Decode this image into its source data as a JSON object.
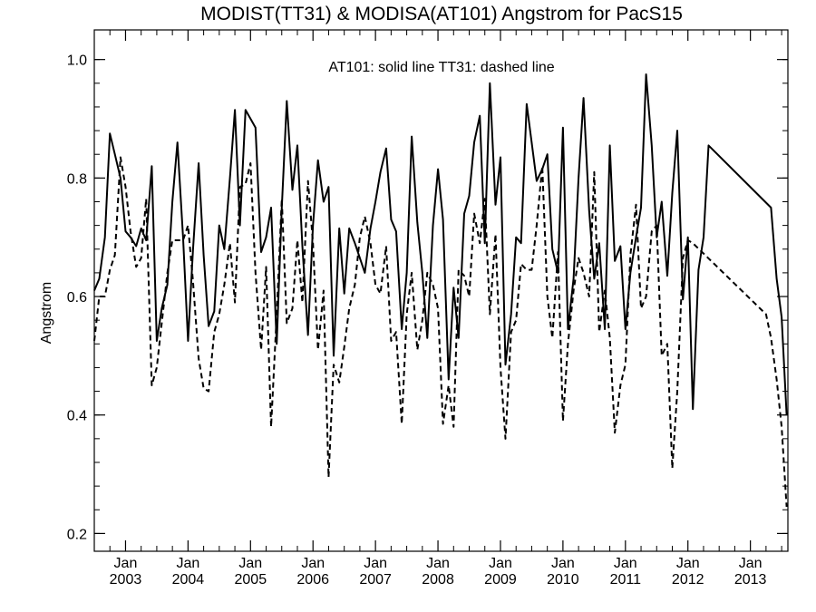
{
  "chart_data": {
    "type": "line",
    "title": "MODIST(TT31) & MODISA(AT101)  Angstrom for PacS15",
    "xlabel": "",
    "ylabel": "Angstrom",
    "annotation": "AT101: solid line    TT31: dashed line",
    "xlim": [
      2002.5,
      2013.6
    ],
    "ylim": [
      0.17,
      1.05
    ],
    "yticks": [
      0.2,
      0.4,
      0.6,
      0.8,
      1.0
    ],
    "ytick_labels": [
      "0.2",
      "0.4",
      "0.6",
      "0.8",
      "1.0"
    ],
    "xticks": [
      {
        "pos": 2003.0,
        "month": "Jan",
        "year": "2003"
      },
      {
        "pos": 2004.0,
        "month": "Jan",
        "year": "2004"
      },
      {
        "pos": 2005.0,
        "month": "Jan",
        "year": "2005"
      },
      {
        "pos": 2006.0,
        "month": "Jan",
        "year": "2006"
      },
      {
        "pos": 2007.0,
        "month": "Jan",
        "year": "2007"
      },
      {
        "pos": 2008.0,
        "month": "Jan",
        "year": "2008"
      },
      {
        "pos": 2009.0,
        "month": "Jan",
        "year": "2009"
      },
      {
        "pos": 2010.0,
        "month": "Jan",
        "year": "2010"
      },
      {
        "pos": 2011.0,
        "month": "Jan",
        "year": "2011"
      },
      {
        "pos": 2012.0,
        "month": "Jan",
        "year": "2012"
      },
      {
        "pos": 2013.0,
        "month": "Jan",
        "year": "2013"
      }
    ],
    "grid": false,
    "series": [
      {
        "name": "AT101",
        "style": "solid",
        "color": "#000000",
        "points": [
          [
            2002.5,
            0.61
          ],
          [
            2002.58,
            0.63
          ],
          [
            2002.67,
            0.7
          ],
          [
            2002.75,
            0.875
          ],
          [
            2002.83,
            0.84
          ],
          [
            2002.92,
            0.8
          ],
          [
            2003.0,
            0.71
          ],
          [
            2003.08,
            0.7
          ],
          [
            2003.17,
            0.685
          ],
          [
            2003.25,
            0.715
          ],
          [
            2003.33,
            0.695
          ],
          [
            2003.42,
            0.82
          ],
          [
            2003.5,
            0.525
          ],
          [
            2003.58,
            0.58
          ],
          [
            2003.67,
            0.62
          ],
          [
            2003.75,
            0.76
          ],
          [
            2003.83,
            0.86
          ],
          [
            2003.92,
            0.7
          ],
          [
            2004.0,
            0.525
          ],
          [
            2004.08,
            0.68
          ],
          [
            2004.17,
            0.825
          ],
          [
            2004.25,
            0.67
          ],
          [
            2004.33,
            0.55
          ],
          [
            2004.42,
            0.575
          ],
          [
            2004.5,
            0.72
          ],
          [
            2004.58,
            0.68
          ],
          [
            2004.67,
            0.8
          ],
          [
            2004.75,
            0.915
          ],
          [
            2004.83,
            0.72
          ],
          [
            2004.92,
            0.915
          ],
          [
            2005.08,
            0.885
          ],
          [
            2005.17,
            0.675
          ],
          [
            2005.25,
            0.7
          ],
          [
            2005.33,
            0.75
          ],
          [
            2005.42,
            0.52
          ],
          [
            2005.5,
            0.75
          ],
          [
            2005.58,
            0.93
          ],
          [
            2005.67,
            0.78
          ],
          [
            2005.75,
            0.855
          ],
          [
            2005.83,
            0.685
          ],
          [
            2005.92,
            0.535
          ],
          [
            2006.0,
            0.72
          ],
          [
            2006.08,
            0.83
          ],
          [
            2006.17,
            0.76
          ],
          [
            2006.25,
            0.785
          ],
          [
            2006.33,
            0.5
          ],
          [
            2006.42,
            0.715
          ],
          [
            2006.5,
            0.605
          ],
          [
            2006.58,
            0.715
          ],
          [
            2006.67,
            0.69
          ],
          [
            2006.75,
            0.665
          ],
          [
            2006.83,
            0.64
          ],
          [
            2006.92,
            0.715
          ],
          [
            2007.0,
            0.76
          ],
          [
            2007.08,
            0.81
          ],
          [
            2007.17,
            0.85
          ],
          [
            2007.25,
            0.73
          ],
          [
            2007.33,
            0.71
          ],
          [
            2007.42,
            0.545
          ],
          [
            2007.5,
            0.64
          ],
          [
            2007.58,
            0.87
          ],
          [
            2007.67,
            0.725
          ],
          [
            2007.75,
            0.64
          ],
          [
            2007.83,
            0.53
          ],
          [
            2007.92,
            0.72
          ],
          [
            2008.0,
            0.815
          ],
          [
            2008.08,
            0.73
          ],
          [
            2008.17,
            0.46
          ],
          [
            2008.25,
            0.615
          ],
          [
            2008.33,
            0.53
          ],
          [
            2008.42,
            0.74
          ],
          [
            2008.5,
            0.77
          ],
          [
            2008.58,
            0.86
          ],
          [
            2008.67,
            0.905
          ],
          [
            2008.75,
            0.69
          ],
          [
            2008.83,
            0.96
          ],
          [
            2008.92,
            0.755
          ],
          [
            2009.0,
            0.835
          ],
          [
            2009.08,
            0.485
          ],
          [
            2009.17,
            0.57
          ],
          [
            2009.25,
            0.7
          ],
          [
            2009.33,
            0.69
          ],
          [
            2009.42,
            0.925
          ],
          [
            2009.5,
            0.86
          ],
          [
            2009.58,
            0.795
          ],
          [
            2009.67,
            0.815
          ],
          [
            2009.75,
            0.84
          ],
          [
            2009.83,
            0.68
          ],
          [
            2009.92,
            0.64
          ],
          [
            2010.0,
            0.885
          ],
          [
            2010.08,
            0.545
          ],
          [
            2010.17,
            0.63
          ],
          [
            2010.25,
            0.8
          ],
          [
            2010.33,
            0.935
          ],
          [
            2010.42,
            0.745
          ],
          [
            2010.5,
            0.63
          ],
          [
            2010.58,
            0.69
          ],
          [
            2010.67,
            0.545
          ],
          [
            2010.75,
            0.855
          ],
          [
            2010.83,
            0.66
          ],
          [
            2010.92,
            0.685
          ],
          [
            2011.0,
            0.545
          ],
          [
            2011.08,
            0.64
          ],
          [
            2011.17,
            0.7
          ],
          [
            2011.25,
            0.75
          ],
          [
            2011.33,
            0.975
          ],
          [
            2011.42,
            0.855
          ],
          [
            2011.5,
            0.7
          ],
          [
            2011.58,
            0.76
          ],
          [
            2011.67,
            0.635
          ],
          [
            2011.75,
            0.775
          ],
          [
            2011.83,
            0.88
          ],
          [
            2011.92,
            0.595
          ],
          [
            2012.0,
            0.7
          ],
          [
            2012.08,
            0.41
          ],
          [
            2012.17,
            0.645
          ],
          [
            2012.25,
            0.7
          ],
          [
            2012.33,
            0.855
          ],
          [
            2013.33,
            0.75
          ],
          [
            2013.42,
            0.63
          ],
          [
            2013.5,
            0.565
          ],
          [
            2013.58,
            0.4
          ]
        ]
      },
      {
        "name": "TT31",
        "style": "dashed",
        "color": "#000000",
        "points": [
          [
            2002.5,
            0.525
          ],
          [
            2002.58,
            0.6
          ],
          [
            2002.67,
            0.6
          ],
          [
            2002.75,
            0.645
          ],
          [
            2002.83,
            0.67
          ],
          [
            2002.92,
            0.835
          ],
          [
            2003.0,
            0.785
          ],
          [
            2003.08,
            0.71
          ],
          [
            2003.17,
            0.65
          ],
          [
            2003.25,
            0.665
          ],
          [
            2003.33,
            0.765
          ],
          [
            2003.42,
            0.45
          ],
          [
            2003.5,
            0.48
          ],
          [
            2003.58,
            0.555
          ],
          [
            2003.67,
            0.64
          ],
          [
            2003.75,
            0.695
          ],
          [
            2003.83,
            0.695
          ],
          [
            2003.92,
            0.695
          ],
          [
            2004.0,
            0.72
          ],
          [
            2004.08,
            0.625
          ],
          [
            2004.17,
            0.495
          ],
          [
            2004.25,
            0.445
          ],
          [
            2004.33,
            0.44
          ],
          [
            2004.42,
            0.54
          ],
          [
            2004.5,
            0.57
          ],
          [
            2004.58,
            0.62
          ],
          [
            2004.67,
            0.69
          ],
          [
            2004.75,
            0.59
          ],
          [
            2004.83,
            0.785
          ],
          [
            2004.92,
            0.79
          ],
          [
            2005.0,
            0.825
          ],
          [
            2005.08,
            0.64
          ],
          [
            2005.17,
            0.51
          ],
          [
            2005.25,
            0.65
          ],
          [
            2005.33,
            0.38
          ],
          [
            2005.42,
            0.57
          ],
          [
            2005.5,
            0.765
          ],
          [
            2005.58,
            0.555
          ],
          [
            2005.67,
            0.58
          ],
          [
            2005.75,
            0.695
          ],
          [
            2005.83,
            0.59
          ],
          [
            2005.92,
            0.795
          ],
          [
            2006.0,
            0.69
          ],
          [
            2006.08,
            0.51
          ],
          [
            2006.17,
            0.61
          ],
          [
            2006.25,
            0.295
          ],
          [
            2006.33,
            0.485
          ],
          [
            2006.42,
            0.455
          ],
          [
            2006.5,
            0.515
          ],
          [
            2006.58,
            0.58
          ],
          [
            2006.67,
            0.62
          ],
          [
            2006.75,
            0.7
          ],
          [
            2006.83,
            0.735
          ],
          [
            2006.92,
            0.69
          ],
          [
            2007.0,
            0.62
          ],
          [
            2007.08,
            0.605
          ],
          [
            2007.17,
            0.685
          ],
          [
            2007.25,
            0.525
          ],
          [
            2007.33,
            0.54
          ],
          [
            2007.42,
            0.385
          ],
          [
            2007.5,
            0.57
          ],
          [
            2007.58,
            0.64
          ],
          [
            2007.67,
            0.51
          ],
          [
            2007.75,
            0.56
          ],
          [
            2007.83,
            0.64
          ],
          [
            2007.92,
            0.62
          ],
          [
            2008.0,
            0.58
          ],
          [
            2008.08,
            0.385
          ],
          [
            2008.17,
            0.45
          ],
          [
            2008.25,
            0.38
          ],
          [
            2008.33,
            0.645
          ],
          [
            2008.42,
            0.635
          ],
          [
            2008.5,
            0.6
          ],
          [
            2008.58,
            0.74
          ],
          [
            2008.67,
            0.69
          ],
          [
            2008.75,
            0.765
          ],
          [
            2008.83,
            0.57
          ],
          [
            2008.92,
            0.705
          ],
          [
            2009.0,
            0.48
          ],
          [
            2009.08,
            0.36
          ],
          [
            2009.17,
            0.54
          ],
          [
            2009.25,
            0.56
          ],
          [
            2009.33,
            0.655
          ],
          [
            2009.42,
            0.645
          ],
          [
            2009.5,
            0.645
          ],
          [
            2009.58,
            0.72
          ],
          [
            2009.67,
            0.82
          ],
          [
            2009.75,
            0.6
          ],
          [
            2009.83,
            0.53
          ],
          [
            2009.92,
            0.675
          ],
          [
            2010.0,
            0.39
          ],
          [
            2010.08,
            0.52
          ],
          [
            2010.17,
            0.61
          ],
          [
            2010.25,
            0.665
          ],
          [
            2010.33,
            0.64
          ],
          [
            2010.42,
            0.6
          ],
          [
            2010.5,
            0.81
          ],
          [
            2010.58,
            0.54
          ],
          [
            2010.67,
            0.61
          ],
          [
            2010.75,
            0.53
          ],
          [
            2010.83,
            0.37
          ],
          [
            2010.92,
            0.45
          ],
          [
            2011.0,
            0.485
          ],
          [
            2011.08,
            0.67
          ],
          [
            2011.17,
            0.755
          ],
          [
            2011.25,
            0.58
          ],
          [
            2011.33,
            0.6
          ],
          [
            2011.42,
            0.71
          ],
          [
            2011.5,
            0.72
          ],
          [
            2011.58,
            0.5
          ],
          [
            2011.67,
            0.52
          ],
          [
            2011.75,
            0.31
          ],
          [
            2011.83,
            0.44
          ],
          [
            2011.92,
            0.665
          ],
          [
            2012.0,
            0.695
          ],
          [
            2012.08,
            0.69
          ],
          [
            2013.25,
            0.57
          ],
          [
            2013.33,
            0.53
          ],
          [
            2013.42,
            0.46
          ],
          [
            2013.5,
            0.38
          ],
          [
            2013.58,
            0.245
          ]
        ]
      }
    ]
  }
}
